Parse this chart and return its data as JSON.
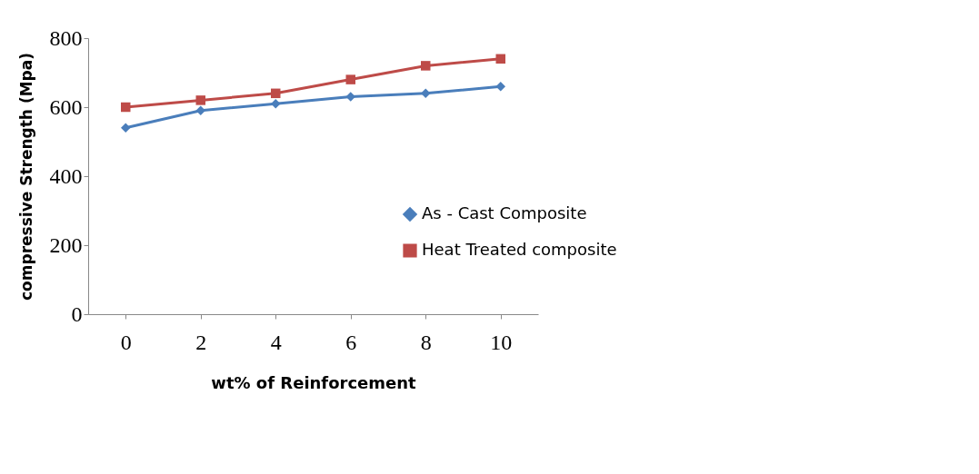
{
  "chart_data": {
    "type": "line",
    "xlabel": "wt% of Reinforcement",
    "ylabel": "compressive Strength (Mpa)",
    "categories": [
      "0",
      "2",
      "4",
      "6",
      "8",
      "10"
    ],
    "series": [
      {
        "name": "As - Cast Composite",
        "color": "#4a7ebb",
        "marker": "diamond",
        "values": [
          540,
          590,
          610,
          630,
          640,
          660
        ]
      },
      {
        "name": "Heat Treated composite",
        "color": "#be4b48",
        "marker": "square",
        "values": [
          600,
          620,
          640,
          680,
          720,
          740
        ]
      }
    ],
    "ylim": [
      0,
      800
    ],
    "yticks": [
      0,
      200,
      400,
      600,
      800
    ],
    "grid": false,
    "legend": "right",
    "line_style": "solid"
  }
}
